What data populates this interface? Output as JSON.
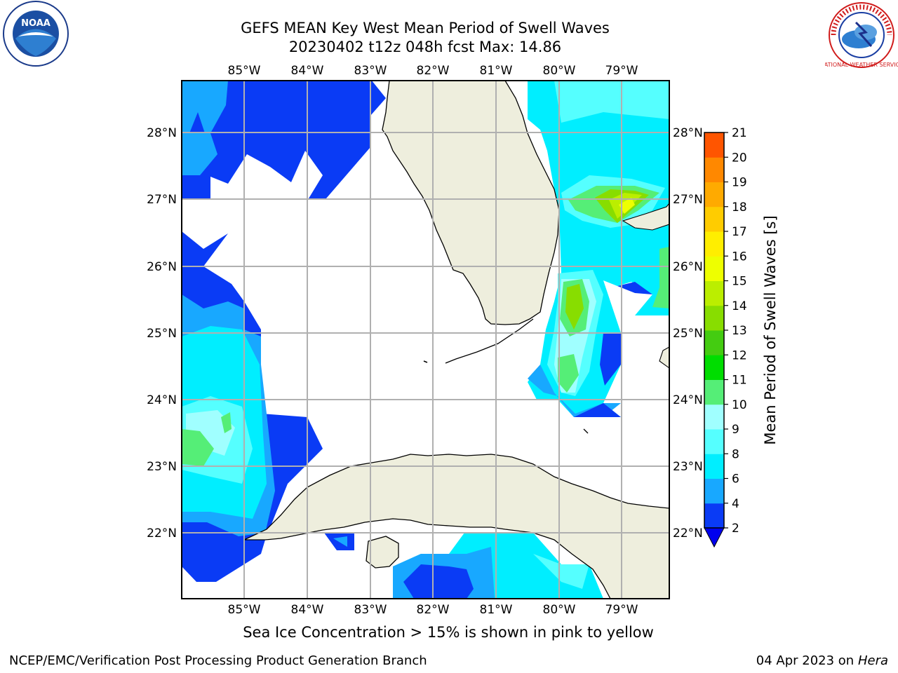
{
  "header": {
    "title_line1": "GEFS MEAN Key West Mean Period of Swell Waves",
    "title_line2": "20230402 t12z 048h fcst   Max: 14.86"
  },
  "map": {
    "lon_labels": [
      "85°W",
      "84°W",
      "83°W",
      "82°W",
      "81°W",
      "80°W",
      "79°W"
    ],
    "lat_labels": [
      "28°N",
      "27°N",
      "26°N",
      "25°N",
      "24°N",
      "23°N",
      "22°N"
    ],
    "colors": {
      "land": "#eeeedd",
      "ocean_missing": "#ffffff",
      "grid": "#b0b0b0"
    }
  },
  "colorbar": {
    "label": "Mean Period of Swell Waves [s]",
    "ticks": [
      "2",
      "4",
      "6",
      "8",
      "9",
      "10",
      "11",
      "12",
      "13",
      "14",
      "15",
      "16",
      "17",
      "18",
      "19",
      "20",
      "21"
    ],
    "colors": [
      "#0a3bf5",
      "#18a8ff",
      "#00eeff",
      "#55ffff",
      "#a0ffff",
      "#55ee77",
      "#00dd00",
      "#44cc11",
      "#88dd00",
      "#bbee00",
      "#eeff00",
      "#ffee00",
      "#ffcc00",
      "#ffaa00",
      "#ff8800",
      "#ff5500",
      "#ff2200",
      "#ff0000"
    ],
    "extend_color": "#0000ee"
  },
  "notes": {
    "sea_ice": "Sea Ice Concentration > 15% is shown in pink to yellow"
  },
  "footer": {
    "left": "NCEP/EMC/Verification Post Processing Product Generation Branch",
    "date": "04 Apr 2023 on ",
    "machine": "Hera"
  },
  "logos": {
    "noaa_text": "NOAA",
    "nws_text": "NATIONAL WEATHER SERVICE"
  }
}
